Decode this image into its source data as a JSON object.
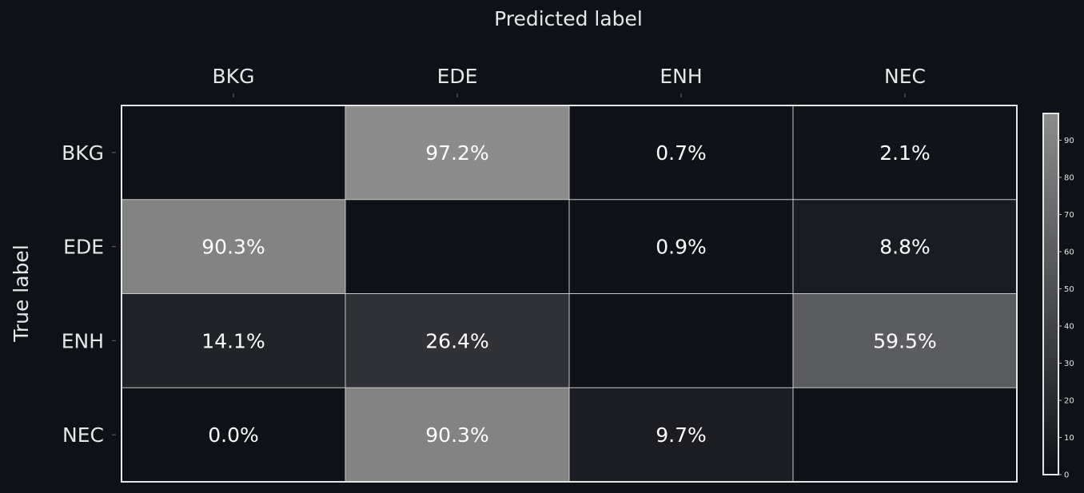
{
  "chart_data": {
    "type": "heatmap",
    "xlabel": "Predicted label",
    "ylabel": "True label",
    "x_categories": [
      "BKG",
      "EDE",
      "ENH",
      "NEC"
    ],
    "y_categories": [
      "BKG",
      "EDE",
      "ENH",
      "NEC"
    ],
    "values": [
      [
        null,
        97.2,
        0.7,
        2.1
      ],
      [
        90.3,
        null,
        0.9,
        8.8
      ],
      [
        14.1,
        26.4,
        null,
        59.5
      ],
      [
        0.0,
        90.3,
        9.7,
        null
      ]
    ],
    "cell_labels": [
      [
        "",
        "97.2%",
        "0.7%",
        "2.1%"
      ],
      [
        "90.3%",
        "",
        "0.9%",
        "8.8%"
      ],
      [
        "14.1%",
        "26.4%",
        "",
        "59.5%"
      ],
      [
        "0.0%",
        "90.3%",
        "9.7%",
        ""
      ]
    ],
    "colorbar": {
      "range": [
        0,
        97.2
      ],
      "ticks": [
        "0",
        "10",
        "20",
        "30",
        "40",
        "50",
        "60",
        "70",
        "80",
        "90"
      ],
      "color_low": "#0e1117",
      "color_high": "#8c8c8c"
    },
    "grid": true,
    "background": "#0e1117",
    "text_color": "#ffffff",
    "label_color": "#e6e6e6"
  }
}
